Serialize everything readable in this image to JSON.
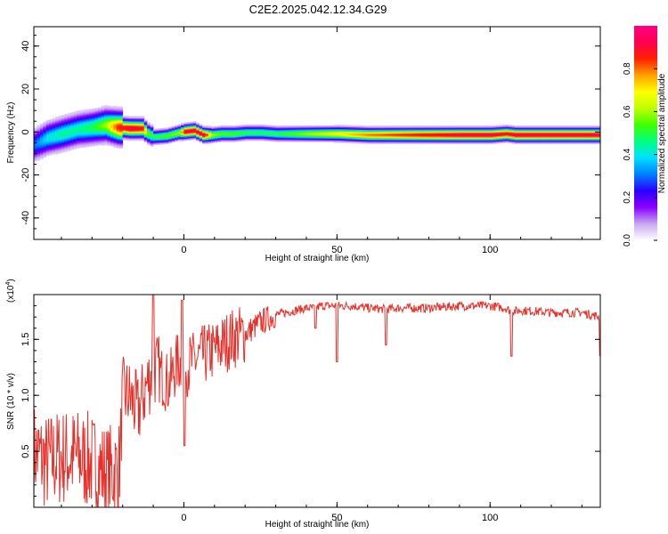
{
  "title": "C2E2.2025.042.12.34.G29",
  "chart_data": [
    {
      "type": "heatmap",
      "xlabel": "Height of straight line (km)",
      "ylabel": "Frequency (Hz)",
      "xlim": [
        -49,
        136
      ],
      "ylim": [
        -50,
        49
      ],
      "xticks": [
        0,
        50,
        100
      ],
      "yticks": [
        -40,
        -20,
        0,
        20,
        40
      ],
      "colorbar": {
        "label": "Normalized spectral amplitude",
        "range": [
          0,
          1
        ],
        "ticks": [
          0.0,
          0.2,
          0.4,
          0.6,
          0.8
        ],
        "colormap": [
          "#ffffff",
          "#c8a8f0",
          "#8a00ff",
          "#2a00ff",
          "#0080ff",
          "#00e0ff",
          "#00ff80",
          "#40ff00",
          "#c0ff00",
          "#ffff00",
          "#ffa000",
          "#ff2000",
          "#ff0050",
          "#ff0080"
        ]
      },
      "ridge": {
        "x": [
          -49,
          -45,
          -40,
          -35,
          -30,
          -26,
          -22,
          -18,
          -14,
          -12,
          -10,
          -6,
          -2,
          0,
          3,
          6,
          9,
          12,
          16,
          20,
          25,
          30,
          40,
          50,
          60,
          70,
          80,
          90,
          100,
          105,
          108,
          115,
          125,
          136
        ],
        "frequency": [
          -6,
          -3,
          -1,
          1,
          2,
          3,
          2,
          1.5,
          1.5,
          -1,
          -2.5,
          -2,
          -0.5,
          0,
          0.5,
          -1.5,
          -1.5,
          -1,
          -1,
          -0.5,
          -0.5,
          -1,
          -1,
          -1,
          -1.5,
          -1.5,
          -1.5,
          -1.5,
          -1.5,
          -1,
          -1.5,
          -1.5,
          -1.5,
          -1.5
        ],
        "peak_amplitude": [
          0.3,
          0.4,
          0.45,
          0.45,
          0.5,
          0.6,
          0.85,
          0.95,
          0.9,
          0.55,
          0.5,
          0.55,
          0.6,
          0.95,
          0.95,
          0.95,
          0.6,
          0.55,
          0.55,
          0.5,
          0.5,
          0.5,
          0.6,
          0.7,
          0.8,
          0.85,
          0.9,
          0.95,
          0.95,
          0.9,
          0.95,
          0.95,
          0.95,
          0.95
        ]
      }
    },
    {
      "type": "line",
      "xlabel": "Height of straight line (km)",
      "ylabel": "SNR (10 * v/v)",
      "y_exponent_label": "(x10",
      "y_exponent": "4",
      "y_exponent_close": ")",
      "xlim": [
        -49,
        136
      ],
      "ylim": [
        0.0,
        1.9
      ],
      "xticks": [
        0,
        50,
        100
      ],
      "yticks": [
        0.5,
        1.0,
        1.5
      ],
      "color": "#e8302a",
      "series": [
        {
          "x": [
            -49,
            -45,
            -40,
            -35,
            -30,
            -25,
            -21,
            -20,
            -18,
            -15,
            -12,
            -10,
            -8,
            -5,
            -2,
            0,
            3,
            6,
            10,
            15,
            20,
            25,
            30,
            35,
            40,
            43,
            45,
            50,
            55,
            60,
            66,
            70,
            80,
            90,
            100,
            105,
            107,
            110,
            120,
            130,
            136
          ],
          "y": [
            0.5,
            0.4,
            0.45,
            0.45,
            0.4,
            0.3,
            0.35,
            1.0,
            1.0,
            0.85,
            1.1,
            1.25,
            1.2,
            1.1,
            1.3,
            1.25,
            1.3,
            1.35,
            1.4,
            1.5,
            1.55,
            1.65,
            1.72,
            1.75,
            1.78,
            1.78,
            1.8,
            1.8,
            1.8,
            1.78,
            1.77,
            1.78,
            1.78,
            1.8,
            1.8,
            1.78,
            1.75,
            1.76,
            1.74,
            1.74,
            1.7
          ]
        }
      ],
      "dips": [
        {
          "x": 43,
          "y": 1.6
        },
        {
          "x": 50,
          "y": 1.3
        },
        {
          "x": 66,
          "y": 1.45
        },
        {
          "x": 107,
          "y": 1.35
        },
        {
          "x": 136,
          "y": 1.35
        }
      ],
      "spikes": [
        {
          "x": -10,
          "y": 1.9
        },
        {
          "x": -0.5,
          "y": 1.85
        },
        {
          "x": 0.2,
          "y": 0.55
        }
      ]
    }
  ]
}
